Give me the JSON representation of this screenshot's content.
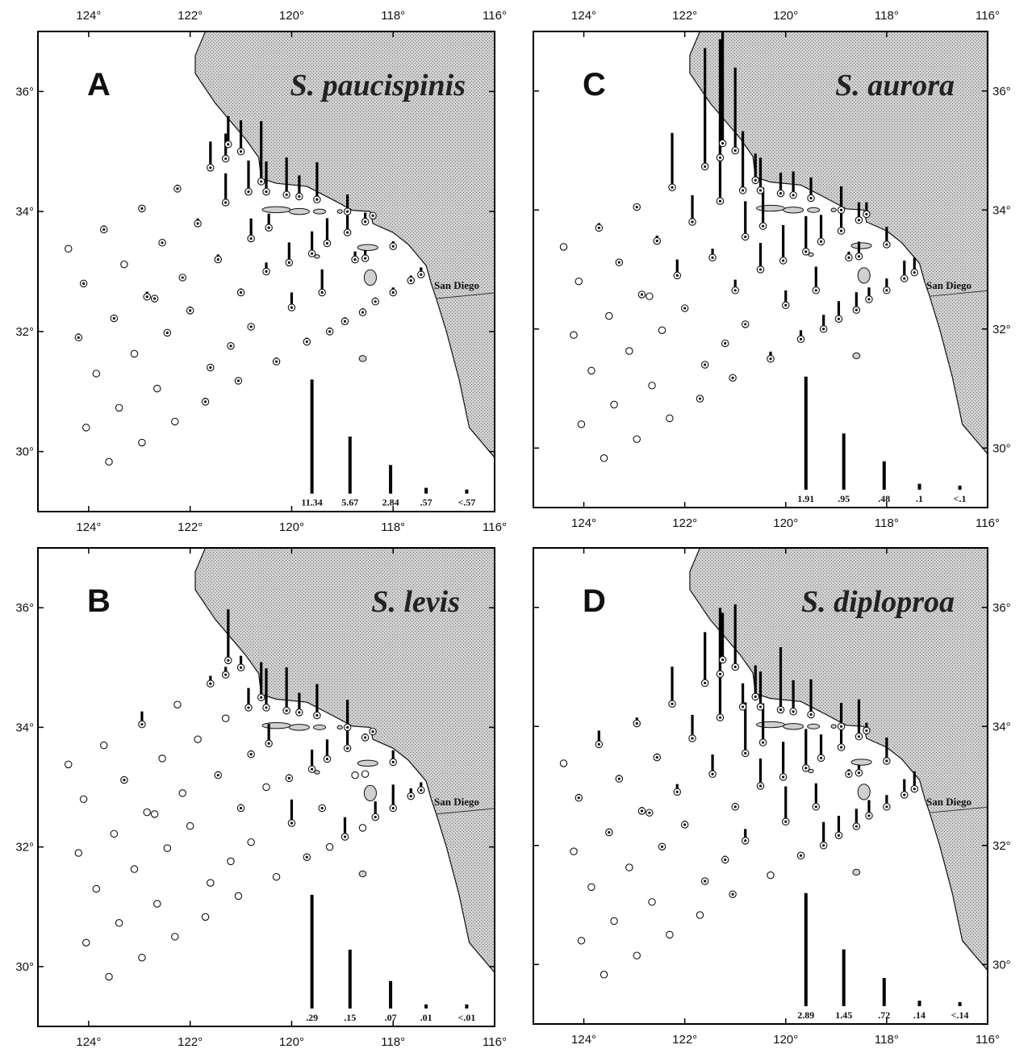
{
  "axes": {
    "lon_ticks": [
      124,
      122,
      120,
      118,
      116
    ],
    "lat_ticks": [
      30,
      32,
      34,
      36
    ],
    "lon_labels": [
      "124°",
      "122°",
      "120°",
      "118°",
      "116°"
    ],
    "lat_labels": [
      "30°",
      "32°",
      "34°",
      "36°"
    ],
    "lon_range": [
      125.0,
      116.0
    ],
    "lat_range": [
      29.0,
      37.0
    ]
  },
  "colors": {
    "land_fill": "#c8c8c8",
    "land_stipple": "#8a8a8a",
    "frame": "#000000",
    "bar": "#000000"
  },
  "place_label": "San Diego",
  "coastline": [
    [
      121.7,
      37.0
    ],
    [
      121.9,
      36.6
    ],
    [
      121.9,
      36.3
    ],
    [
      121.5,
      35.8
    ],
    [
      121.2,
      35.5
    ],
    [
      120.9,
      35.2
    ],
    [
      120.65,
      34.9
    ],
    [
      120.6,
      34.55
    ],
    [
      120.3,
      34.47
    ],
    [
      119.7,
      34.42
    ],
    [
      119.2,
      34.2
    ],
    [
      118.8,
      34.02
    ],
    [
      118.45,
      34.0
    ],
    [
      118.4,
      33.8
    ],
    [
      118.0,
      33.65
    ],
    [
      117.7,
      33.45
    ],
    [
      117.35,
      33.1
    ],
    [
      117.25,
      32.8
    ],
    [
      117.15,
      32.55
    ],
    [
      116.95,
      32.0
    ],
    [
      116.7,
      31.2
    ],
    [
      116.5,
      30.4
    ],
    [
      116.0,
      29.9
    ]
  ],
  "border": [
    [
      117.15,
      32.55
    ],
    [
      116.0,
      32.65
    ]
  ],
  "islands": [
    [
      120.3,
      34.03,
      0.28,
      0.05
    ],
    [
      119.85,
      34.0,
      0.2,
      0.05
    ],
    [
      119.45,
      34.0,
      0.12,
      0.04
    ],
    [
      119.05,
      34.0,
      0.05,
      0.03
    ],
    [
      119.5,
      33.25,
      0.05,
      0.03
    ],
    [
      118.5,
      33.4,
      0.2,
      0.05
    ],
    [
      118.45,
      32.9,
      0.12,
      0.13
    ],
    [
      118.6,
      31.55,
      0.07,
      0.05
    ]
  ],
  "stations": [
    [
      124.4,
      33.38
    ],
    [
      124.1,
      32.8
    ],
    [
      123.7,
      33.7
    ],
    [
      123.3,
      33.12
    ],
    [
      122.95,
      34.05
    ],
    [
      122.85,
      32.58
    ],
    [
      122.55,
      33.48
    ],
    [
      122.25,
      34.38
    ],
    [
      122.15,
      32.9
    ],
    [
      121.85,
      33.8
    ],
    [
      124.2,
      31.9
    ],
    [
      123.85,
      31.3
    ],
    [
      123.5,
      32.22
    ],
    [
      123.1,
      31.63
    ],
    [
      122.7,
      32.55
    ],
    [
      122.45,
      31.98
    ],
    [
      122.0,
      32.35
    ],
    [
      121.6,
      31.4
    ],
    [
      121.2,
      31.76
    ],
    [
      120.8,
      32.08
    ],
    [
      124.05,
      30.4
    ],
    [
      123.6,
      29.83
    ],
    [
      123.4,
      30.73
    ],
    [
      122.95,
      30.15
    ],
    [
      122.65,
      31.05
    ],
    [
      122.3,
      30.5
    ],
    [
      121.7,
      30.83
    ],
    [
      121.05,
      31.18
    ],
    [
      120.3,
      31.5
    ],
    [
      119.7,
      31.83
    ],
    [
      119.25,
      32.0
    ],
    [
      118.95,
      32.17
    ],
    [
      118.6,
      32.32
    ],
    [
      118.35,
      32.5
    ],
    [
      118.0,
      32.65
    ],
    [
      117.65,
      32.85
    ],
    [
      117.45,
      32.95
    ],
    [
      118.0,
      33.42
    ],
    [
      118.55,
      33.22
    ],
    [
      118.75,
      33.2
    ],
    [
      119.4,
      32.65
    ],
    [
      120.0,
      32.4
    ],
    [
      120.5,
      33.0
    ],
    [
      121.0,
      32.65
    ],
    [
      121.45,
      33.2
    ],
    [
      121.3,
      34.15
    ],
    [
      120.8,
      33.55
    ],
    [
      120.45,
      33.73
    ],
    [
      120.05,
      33.15
    ],
    [
      119.6,
      33.3
    ],
    [
      119.3,
      33.47
    ],
    [
      118.9,
      33.65
    ],
    [
      118.55,
      33.83
    ],
    [
      118.4,
      33.93
    ],
    [
      118.9,
      34.0
    ],
    [
      119.5,
      34.2
    ],
    [
      119.85,
      34.25
    ],
    [
      120.1,
      34.28
    ],
    [
      120.5,
      34.33
    ],
    [
      120.85,
      34.33
    ],
    [
      121.3,
      34.88
    ],
    [
      121.6,
      34.73
    ],
    [
      121.0,
      35.0
    ],
    [
      121.25,
      35.12
    ],
    [
      120.6,
      34.5
    ]
  ],
  "panels": [
    {
      "letter": "A",
      "species": "S. paucispinis",
      "legend_labels": [
        "11.34",
        "5.67",
        "2.84",
        ".57",
        "<.57"
      ],
      "legend_values": [
        11.34,
        5.67,
        2.84,
        0.57,
        0.3
      ],
      "legend_scale": 11.34,
      "bars": [
        0,
        0.2,
        0.4,
        0,
        0.3,
        0.5,
        0.3,
        0.4,
        0.3,
        0.5,
        0.4,
        0,
        0.3,
        0,
        0.3,
        0.3,
        0.4,
        0.3,
        0.3,
        0.3,
        0,
        0,
        0,
        0,
        0,
        0,
        0.4,
        0.3,
        0.4,
        0.4,
        0.4,
        0.4,
        0.4,
        0.4,
        0.5,
        0.5,
        0.7,
        0.5,
        0.8,
        0.8,
        2.3,
        1.5,
        0.9,
        0.4,
        0.5,
        2.9,
        2.0,
        1.4,
        2.0,
        2.2,
        2.5,
        1.7,
        0.9,
        0.3,
        1.7,
        3.7,
        2.1,
        3.7,
        3.0,
        3.1,
        2.5,
        2.6,
        3.1,
        2.8,
        6.0
      ]
    },
    {
      "letter": "B",
      "species": "S. levis",
      "legend_labels": [
        ".29",
        ".15",
        ".07",
        ".01",
        "<.01"
      ],
      "legend_values": [
        0.29,
        0.15,
        0.07,
        0.01,
        0.005
      ],
      "legend_scale": 0.29,
      "bars": [
        0,
        0,
        0,
        0.009,
        0.033,
        0,
        0,
        0,
        0,
        0,
        0,
        0,
        0,
        0,
        0,
        0,
        0,
        0,
        0,
        0,
        0,
        0,
        0,
        0,
        0,
        0,
        0,
        0,
        0,
        0.009,
        0,
        0.05,
        0,
        0.04,
        0.06,
        0.02,
        0.02,
        0.03,
        0,
        0,
        0.008,
        0.06,
        0,
        0.01,
        0.01,
        0,
        0.01,
        0.05,
        0.01,
        0.05,
        0.05,
        0.09,
        0.01,
        0.008,
        0.07,
        0.08,
        0.05,
        0.11,
        0.1,
        0.05,
        0.02,
        0.02,
        0.03,
        0.13,
        0.09
      ]
    },
    {
      "letter": "C",
      "species": "S. aurora",
      "legend_labels": [
        "1.91",
        ".95",
        ".48",
        ".1",
        "<.1"
      ],
      "legend_values": [
        1.91,
        0.95,
        0.48,
        0.1,
        0.05
      ],
      "legend_scale": 1.91,
      "bars": [
        0,
        0,
        0.08,
        0.04,
        0.04,
        0.04,
        0.09,
        0.92,
        0.27,
        0.45,
        0,
        0,
        0,
        0,
        0,
        0,
        0.04,
        0.04,
        0.04,
        0.04,
        0,
        0,
        0,
        0,
        0,
        0,
        0.04,
        0.04,
        0.12,
        0.15,
        0.24,
        0.3,
        0.3,
        0.2,
        0.2,
        0.3,
        0.25,
        0.3,
        0.25,
        0.1,
        0.4,
        0.25,
        0.45,
        0.18,
        0.15,
        1.3,
        0.6,
        0.65,
        0.6,
        0.6,
        0.45,
        0.5,
        0.3,
        0.2,
        0.4,
        0.35,
        0.4,
        0.35,
        0.55,
        1.0,
        2.0,
        2.0,
        1.4,
        2.2,
        0.45
      ]
    },
    {
      "letter": "D",
      "species": "S. diploproa",
      "legend_labels": [
        "2.89",
        "1.45",
        ".72",
        ".14",
        "<.14"
      ],
      "legend_values": [
        2.89,
        1.45,
        0.72,
        0.14,
        0.07
      ],
      "legend_scale": 2.89,
      "bars": [
        0,
        0.1,
        0.35,
        0.1,
        0.15,
        0.1,
        0.1,
        0.95,
        0.2,
        0.6,
        0,
        0,
        0.1,
        0,
        0.08,
        0.08,
        0.1,
        0.08,
        0.1,
        0.3,
        0,
        0,
        0,
        0,
        0,
        0,
        0,
        0.08,
        0,
        0.08,
        0.6,
        0.5,
        0.45,
        0.4,
        0.3,
        0.4,
        0.45,
        0.6,
        0.2,
        0.12,
        0.6,
        0.9,
        0.7,
        0.1,
        0.5,
        2.8,
        1.3,
        1.0,
        0.9,
        1.0,
        0.6,
        0.6,
        0.95,
        0.2,
        0.6,
        0.9,
        0.8,
        1.6,
        0.9,
        0.6,
        1.2,
        1.3,
        1.6,
        1.2,
        0.8
      ]
    }
  ]
}
